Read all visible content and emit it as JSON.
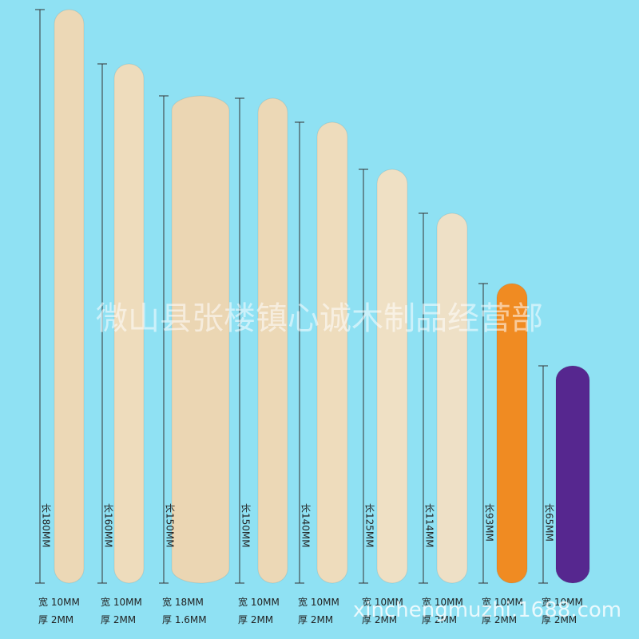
{
  "watermark": "微山县张楼镇心诚木制品经营部",
  "url_watermark": "xinchengmuzhi.1688.com",
  "sticks": [
    {
      "length": "长180MM",
      "width": "宽 10MM",
      "thickness": "厚 2MM"
    },
    {
      "length": "长160MM",
      "width": "宽 10MM",
      "thickness": "厚 2MM"
    },
    {
      "length": "长150MM",
      "width": "宽 18MM",
      "thickness": "厚 1.6MM"
    },
    {
      "length": "长150MM",
      "width": "宽 10MM",
      "thickness": "厚 2MM"
    },
    {
      "length": "长140MM",
      "width": "宽 10MM",
      "thickness": "厚 2MM"
    },
    {
      "length": "长125MM",
      "width": "宽 10MM",
      "thickness": "厚 2MM"
    },
    {
      "length": "长114MM",
      "width": "宽 10MM",
      "thickness": "厚 2MM"
    },
    {
      "length": "长93MM",
      "width": "宽 10MM",
      "thickness": "厚 2MM"
    },
    {
      "length": "长65MM",
      "width": "宽 10MM",
      "thickness": "厚 2MM"
    }
  ]
}
